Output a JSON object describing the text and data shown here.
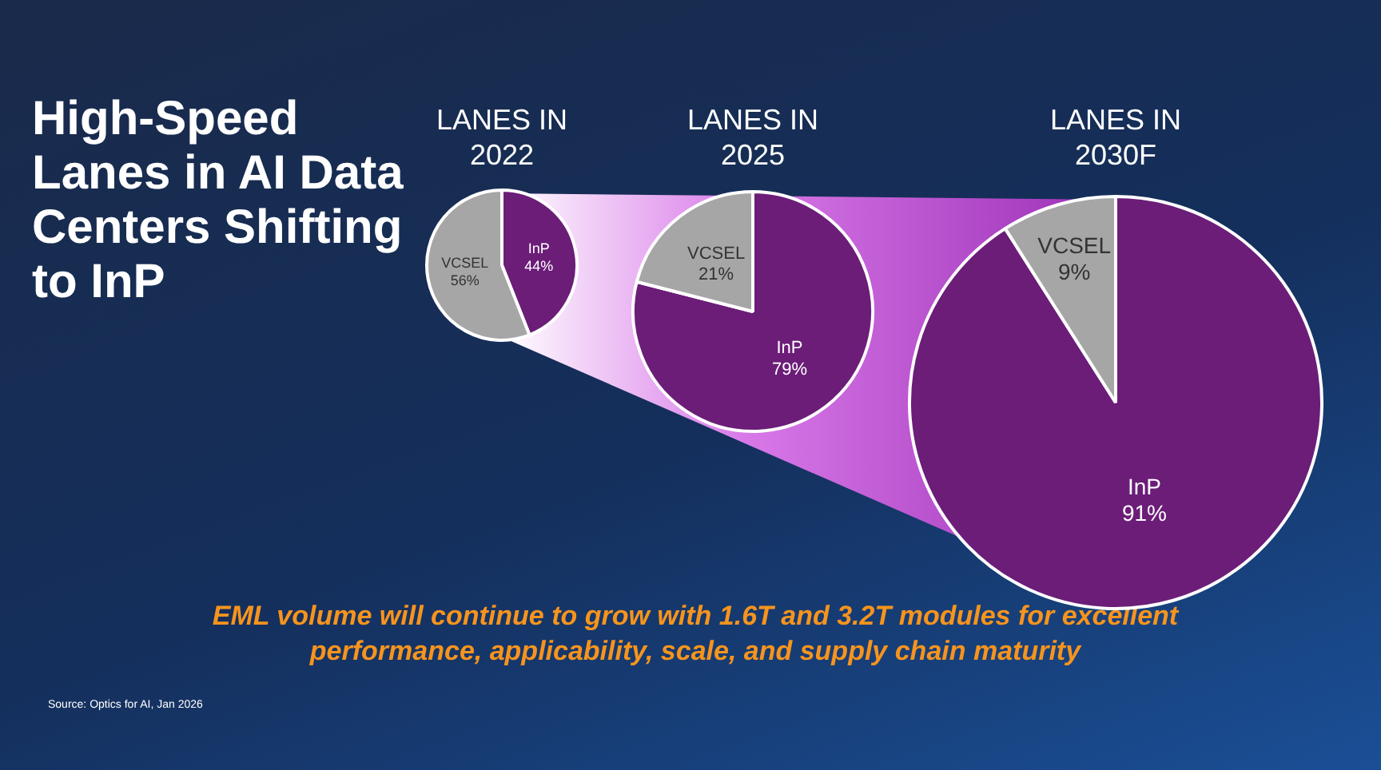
{
  "chart_data": [
    {
      "type": "other",
      "title": "High-Speed Lanes in AI Data Centers Shifting to InP",
      "annotations": [
        "EML volume will continue to grow with 1.6T and 3.2T modules for excellent performance, applicability, scale, and supply chain maturity",
        "Source: Optics for AI, Jan 2026"
      ]
    },
    {
      "type": "pie",
      "title": "LANES IN 2022",
      "categories": [
        "InP",
        "VCSEL"
      ],
      "values": [
        44,
        56
      ],
      "colors": [
        "#6b1d78",
        "#a6a6a6"
      ],
      "value_labels": [
        "44%",
        "56%"
      ]
    },
    {
      "type": "pie",
      "title": "LANES IN 2025",
      "categories": [
        "InP",
        "VCSEL"
      ],
      "values": [
        79,
        21
      ],
      "colors": [
        "#6b1d78",
        "#a6a6a6"
      ],
      "value_labels": [
        "79%",
        "21%"
      ]
    },
    {
      "type": "pie",
      "title": "LANES IN 2030F",
      "categories": [
        "InP",
        "VCSEL"
      ],
      "values": [
        91,
        9
      ],
      "colors": [
        "#6b1d78",
        "#a6a6a6"
      ],
      "value_labels": [
        "91%",
        "9%"
      ]
    }
  ]
}
